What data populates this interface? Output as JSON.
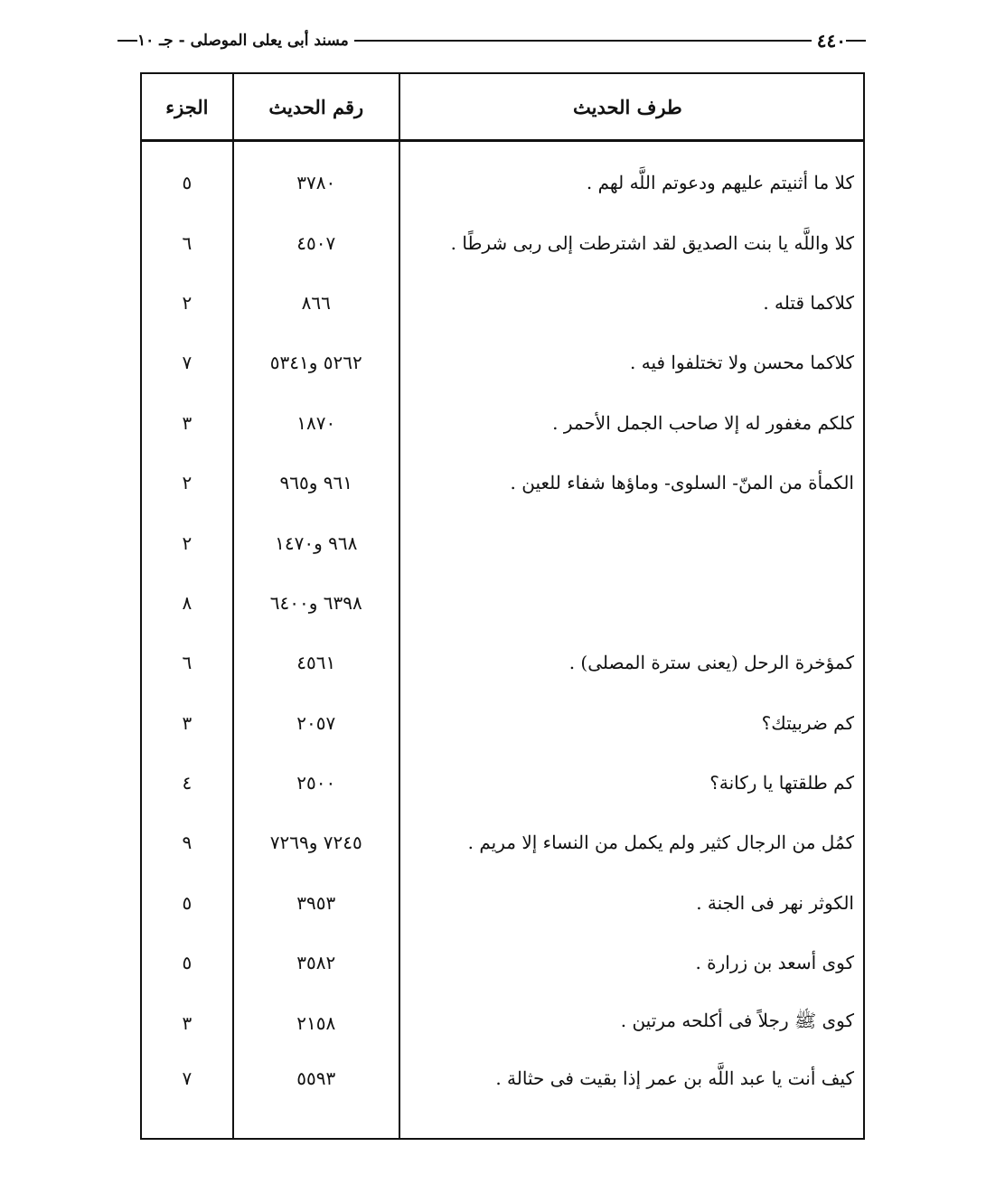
{
  "running_head": {
    "page_number": "٤٤٠",
    "title": "مسند أبى يعلى الموصلى - جـ ١٠"
  },
  "table": {
    "headers": {
      "text": "طرف الحديث",
      "number": "رقم الحديث",
      "juz": "الجزء"
    },
    "rows": [
      {
        "text": "كلا ما أثنيتم عليهم ودعوتم اللَّه لهم .",
        "number": "٣٧٨٠",
        "juz": "٥"
      },
      {
        "text": "كلا واللَّه يا بنت الصديق لقد اشترطت إلى ربى شرطًا .",
        "number": "٤٥٠٧",
        "juz": "٦"
      },
      {
        "text": "كلاكما قتله .",
        "number": "٨٦٦",
        "juz": "٢"
      },
      {
        "text": "كلاكما محسن ولا تختلفوا فيه .",
        "number": "٥٢٦٢ و٥٣٤١",
        "juz": "٧"
      },
      {
        "text": "كلكم مغفور له إلا صاحب الجمل الأحمر .",
        "number": "١٨٧٠",
        "juz": "٣"
      },
      {
        "text": "الكمأة من المنّ- السلوى- وماؤها شفاء للعين .",
        "number": "٩٦١ و٩٦٥",
        "juz": "٢"
      },
      {
        "text": "",
        "number": "٩٦٨ و١٤٧٠",
        "juz": "٢"
      },
      {
        "text": "",
        "number": "٦٣٩٨ و٦٤٠٠",
        "juz": "٨"
      },
      {
        "text": "كمؤخرة الرحل (يعنى سترة المصلى) .",
        "number": "٤٥٦١",
        "juz": "٦"
      },
      {
        "text": "كم ضربيتك؟",
        "number": "٢٠٥٧",
        "juz": "٣"
      },
      {
        "text": "كم طلقتها يا ركانة؟",
        "number": "٢٥٠٠",
        "juz": "٤"
      },
      {
        "text": "كمُل من الرجال كثير ولم يكمل من النساء إلا مريم .",
        "number": "٧٢٤٥ و٧٢٦٩",
        "juz": "٩"
      },
      {
        "text": "الكوثر نهر فى الجنة .",
        "number": "٣٩٥٣",
        "juz": "٥"
      },
      {
        "text": "كوى أسعد بن زرارة .",
        "number": "٣٥٨٢",
        "juz": "٥"
      },
      {
        "text": "كوى ﷺ رجلاً فى أكلحه مرتين .",
        "number": "٢١٥٨",
        "juz": "٣"
      },
      {
        "text": "كيف أنت يا عبد اللَّه بن عمر إذا بقيت فى حثالة .",
        "number": "٥٥٩٣",
        "juz": "٧"
      }
    ]
  }
}
